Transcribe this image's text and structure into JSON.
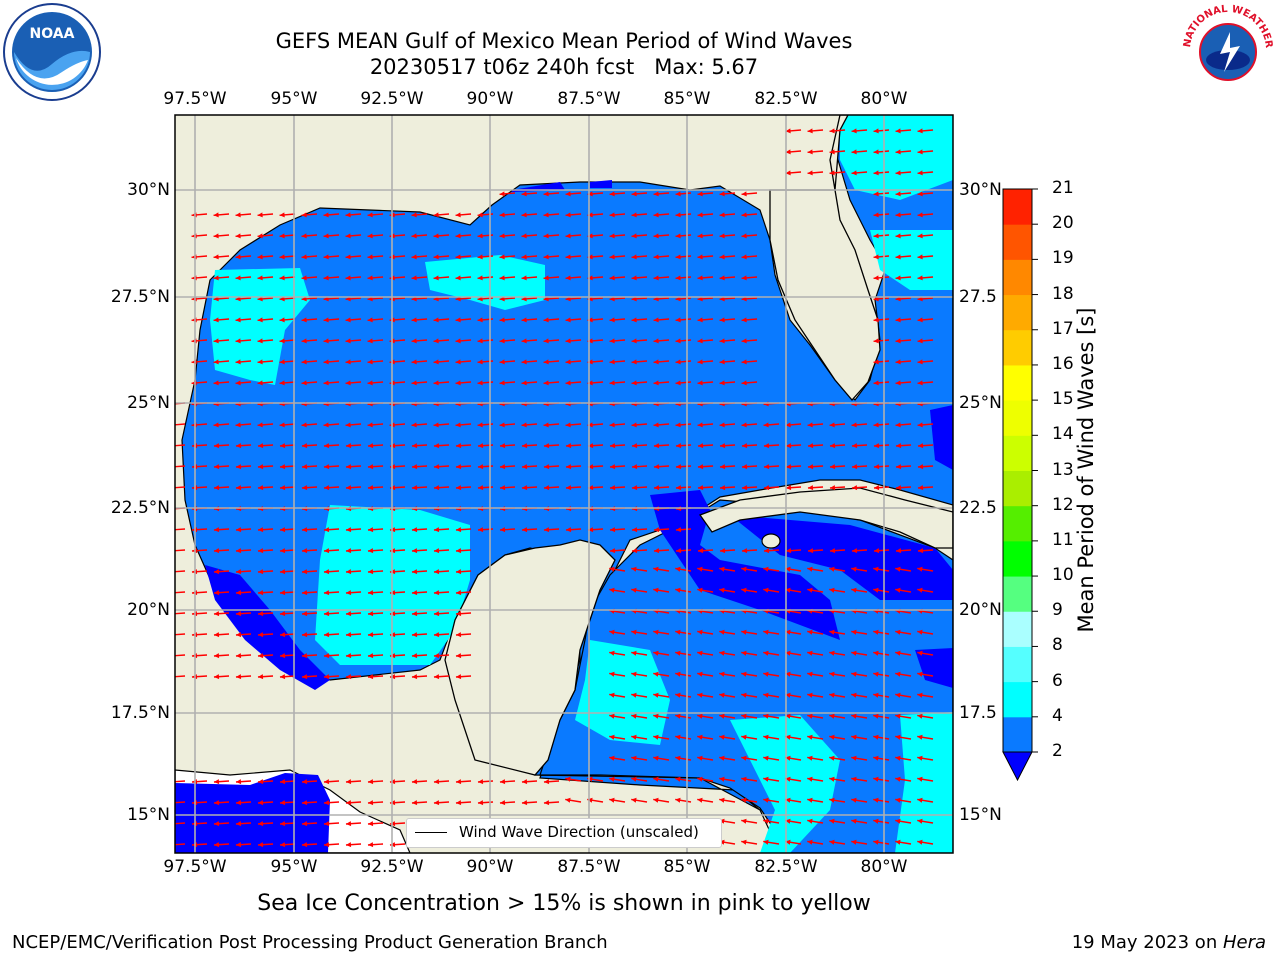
{
  "header": {
    "title_line1": "GEFS MEAN Gulf of Mexico Mean Period of Wind Waves",
    "title_line2": "20230517 t06z 240h fcst   Max: 5.67"
  },
  "logos": {
    "left": "NOAA",
    "right": "NATIONAL WEATHER SERVICE"
  },
  "map": {
    "lon_ticks": [
      "97.5°W",
      "95°W",
      "92.5°W",
      "90°W",
      "87.5°W",
      "85°W",
      "82.5°W",
      "80°W"
    ],
    "lat_ticks_left": [
      "30°N",
      "27.5°N",
      "25°N",
      "22.5°N",
      "20°N",
      "17.5°N",
      "15°N"
    ],
    "lat_ticks_right": [
      "30°N",
      "27.5",
      "25°N",
      "22.5",
      "20°N",
      "17.5",
      "15°N"
    ],
    "legend_label": "Wind Wave Direction (unscaled)",
    "colors": {
      "land": "#eeeedc",
      "sea_2_4": "#0a7aff",
      "sea_4_6": "#00ffff",
      "sea_below_2": "#0000ff",
      "arrow": "#ff0000",
      "grid": "#b0b0b0"
    }
  },
  "colorbar": {
    "label": "Mean Period of Wind Waves [s]",
    "ticks": [
      "2",
      "4",
      "6",
      "8",
      "9",
      "10",
      "11",
      "12",
      "13",
      "14",
      "15",
      "16",
      "17",
      "18",
      "19",
      "20",
      "21"
    ],
    "colors": [
      "#0a7aff",
      "#00ffff",
      "#55ffff",
      "#aaffff",
      "#55ff80",
      "#00ff00",
      "#55ee00",
      "#aaee00",
      "#ccff00",
      "#eeff00",
      "#ffff00",
      "#ffcc00",
      "#ffaa00",
      "#ff8800",
      "#ff5500",
      "#ff2200"
    ],
    "under_color": "#0000ff"
  },
  "caption": "Sea Ice Concentration > 15% is shown in pink to yellow",
  "footer": {
    "left": "NCEP/EMC/Verification Post Processing Product Generation Branch",
    "right_prefix": "19 May 2023 on ",
    "right_machine": "Hera"
  }
}
